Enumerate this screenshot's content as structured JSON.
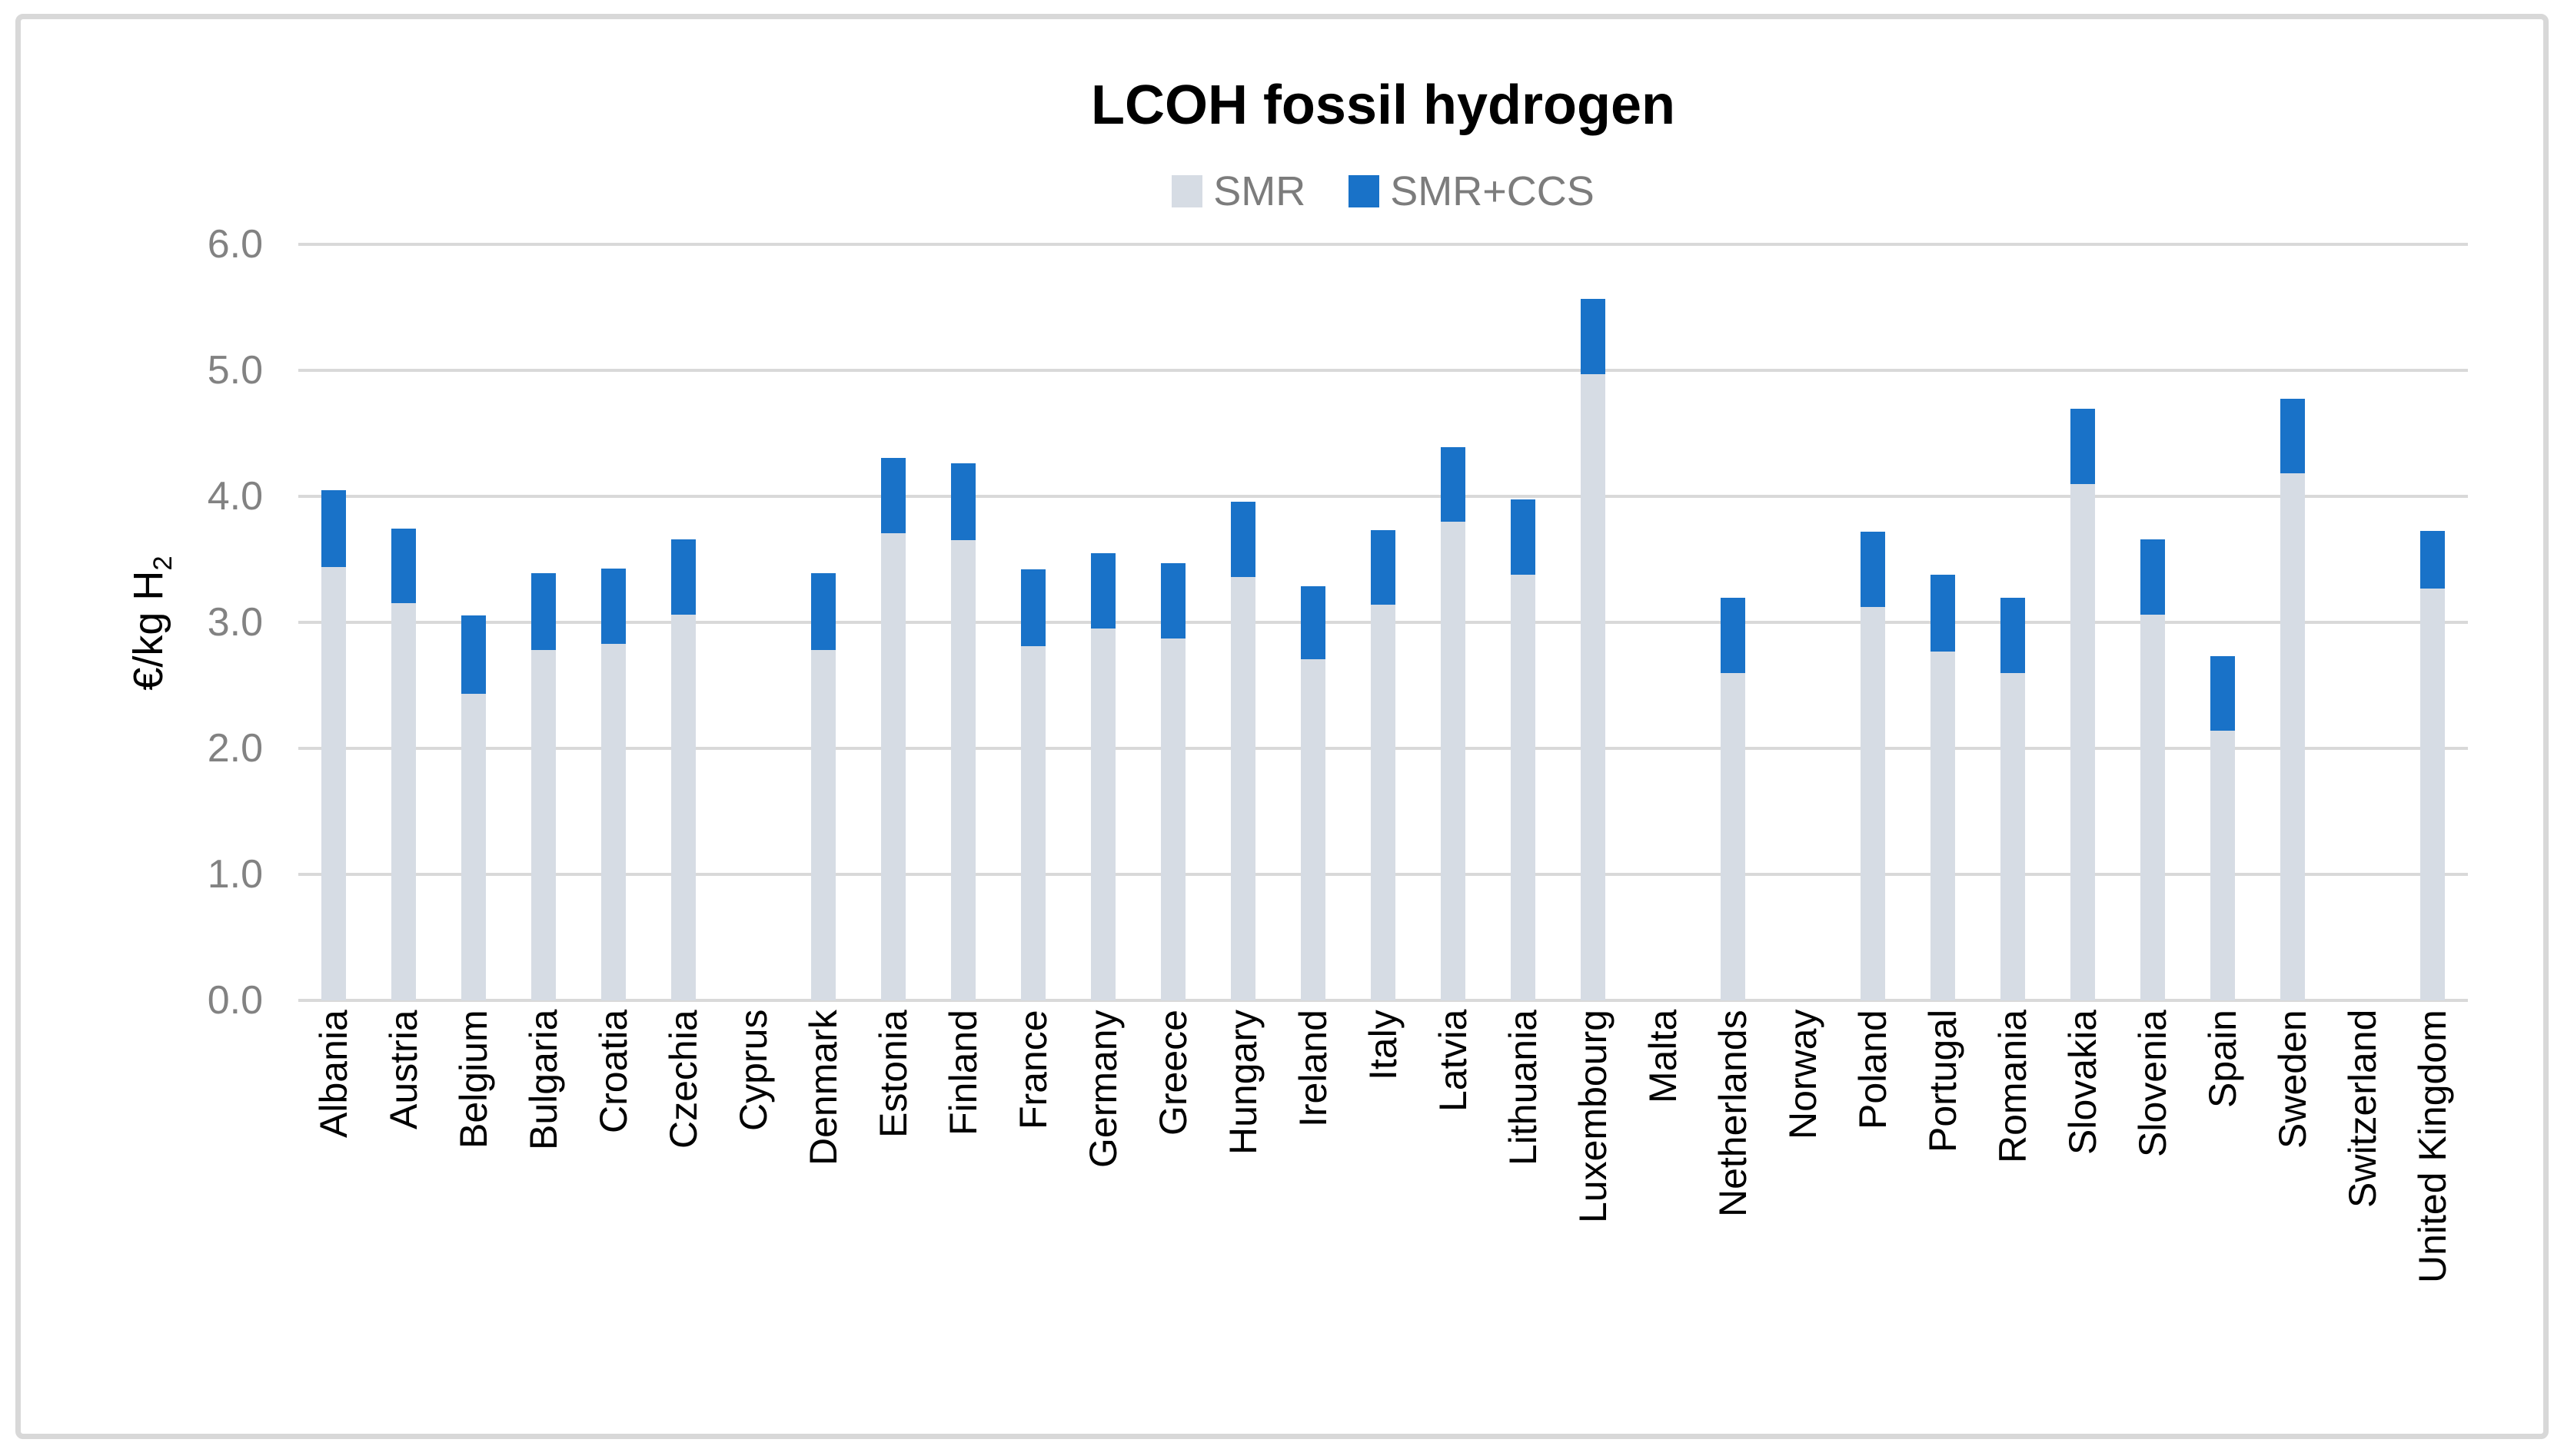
{
  "title": "LCOH fossil hydrogen",
  "y_axis": {
    "label": "€/kg H",
    "label_subscript": "2",
    "ticks": [
      "6.0",
      "5.0",
      "4.0",
      "3.0",
      "2.0",
      "1.0",
      "0.0"
    ]
  },
  "legend": {
    "items": [
      {
        "label": "SMR",
        "color": "#D6DCE4"
      },
      {
        "label": "SMR+CCS",
        "color": "#1972C8"
      }
    ]
  },
  "colors": {
    "smr_bar": "#D6DCE4",
    "smr_ccs_bar": "#1972C8",
    "gridline": "#D9D9D9",
    "tick_text": "#828282",
    "legend_text": "#7C7C7C",
    "title_text": "#000000",
    "frame_border": "#D8D8D8"
  },
  "chart_data": {
    "type": "bar",
    "stacked": true,
    "title": "LCOH fossil hydrogen",
    "ylabel": "€/kg H2",
    "ylim": [
      0,
      6
    ],
    "y_tick_step": 1.0,
    "grid": true,
    "legend_position": "top-center",
    "categories": [
      "Albania",
      "Austria",
      "Belgium",
      "Bulgaria",
      "Croatia",
      "Czechia",
      "Cyprus",
      "Denmark",
      "Estonia",
      "Finland",
      "France",
      "Germany",
      "Greece",
      "Hungary",
      "Ireland",
      "Italy",
      "Latvia",
      "Lithuania",
      "Luxembourg",
      "Malta",
      "Netherlands",
      "Norway",
      "Poland",
      "Portugal",
      "Romania",
      "Slovakia",
      "Slovenia",
      "Spain",
      "Sweden",
      "Switzerland",
      "United Kingdom"
    ],
    "series": [
      {
        "name": "SMR",
        "color": "#D6DCE4",
        "values": [
          3.44,
          3.15,
          2.43,
          2.78,
          2.83,
          3.06,
          null,
          2.78,
          3.71,
          3.65,
          2.81,
          2.95,
          2.87,
          3.36,
          2.71,
          3.14,
          3.8,
          3.38,
          4.97,
          null,
          2.6,
          null,
          3.12,
          2.77,
          2.6,
          4.1,
          3.06,
          2.14,
          4.18,
          null,
          3.27
        ]
      },
      {
        "name": "SMR+CCS",
        "color": "#1972C8",
        "values": [
          4.05,
          3.74,
          3.05,
          3.39,
          3.43,
          3.66,
          null,
          3.39,
          4.31,
          4.26,
          3.42,
          3.55,
          3.47,
          3.96,
          3.29,
          3.73,
          4.39,
          3.98,
          5.57,
          null,
          3.2,
          null,
          3.72,
          3.38,
          3.2,
          4.7,
          3.66,
          2.73,
          4.77,
          null,
          3.73
        ]
      }
    ]
  }
}
